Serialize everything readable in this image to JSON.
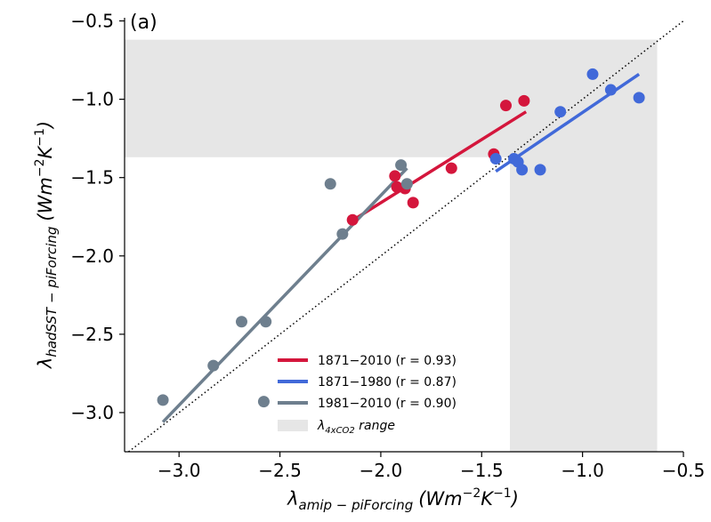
{
  "chart_data": {
    "type": "scatter",
    "panel_label": "(a)",
    "xlabel_parts": {
      "sym": "λ",
      "sub": "amip − piForcing",
      "unit": "(Wm",
      "exp1": "−2",
      "mid": "K",
      "exp2": "−1",
      "close": ")"
    },
    "ylabel_parts": {
      "sym": "λ",
      "sub": "hadSST − piForcing",
      "unit": "(Wm",
      "exp1": "−2",
      "mid": "K",
      "exp2": "−1",
      "close": ")"
    },
    "xlim": [
      -3.27,
      -0.5
    ],
    "ylim": [
      -3.25,
      -0.48
    ],
    "x_ticks": [
      -3.0,
      -2.5,
      -2.0,
      -1.5,
      -1.0,
      -0.5
    ],
    "x_tick_labels": [
      "−3.0",
      "−2.5",
      "−2.0",
      "−1.5",
      "−1.0",
      "−0.5"
    ],
    "y_ticks": [
      -3.0,
      -2.5,
      -2.0,
      -1.5,
      -1.0,
      -0.5
    ],
    "y_tick_labels": [
      "−3.0",
      "−2.5",
      "−2.0",
      "−1.5",
      "−1.0",
      "−0.5"
    ],
    "range_shading": {
      "x_range": [
        -1.36,
        -0.63
      ],
      "y_range": [
        -1.37,
        -0.62
      ],
      "color": "#e6e6e6"
    },
    "one_to_one_line": {
      "style": "dotted",
      "color": "#000000"
    },
    "series": [
      {
        "name": "1871−2010",
        "r_label": "(r = 0.93)",
        "color": "#d4163c",
        "points": [
          [
            -2.14,
            -1.77
          ],
          [
            -1.93,
            -1.49
          ],
          [
            -1.92,
            -1.56
          ],
          [
            -1.88,
            -1.57
          ],
          [
            -1.84,
            -1.66
          ],
          [
            -1.65,
            -1.44
          ],
          [
            -1.44,
            -1.35
          ],
          [
            -1.38,
            -1.04
          ],
          [
            -1.29,
            -1.01
          ]
        ],
        "fit": [
          [
            -2.16,
            -1.79
          ],
          [
            -1.28,
            -1.08
          ]
        ]
      },
      {
        "name": "1871−1980",
        "r_label": "(r = 0.87)",
        "color": "#4169d9",
        "points": [
          [
            -1.43,
            -1.38
          ],
          [
            -1.34,
            -1.38
          ],
          [
            -1.32,
            -1.4
          ],
          [
            -1.3,
            -1.45
          ],
          [
            -1.21,
            -1.45
          ],
          [
            -1.11,
            -1.08
          ],
          [
            -0.95,
            -0.84
          ],
          [
            -0.86,
            -0.94
          ],
          [
            -0.72,
            -0.99
          ]
        ],
        "fit": [
          [
            -1.43,
            -1.46
          ],
          [
            -0.72,
            -0.84
          ]
        ]
      },
      {
        "name": "1981−2010",
        "r_label": "(r = 0.90)",
        "color": "#6e7f8e",
        "points": [
          [
            -3.08,
            -2.92
          ],
          [
            -2.83,
            -2.7
          ],
          [
            -2.69,
            -2.42
          ],
          [
            -2.57,
            -2.42
          ],
          [
            -2.58,
            -2.93
          ],
          [
            -2.25,
            -1.54
          ],
          [
            -2.19,
            -1.86
          ],
          [
            -1.9,
            -1.42
          ],
          [
            -1.87,
            -1.54
          ]
        ],
        "fit": [
          [
            -3.08,
            -3.06
          ],
          [
            -1.87,
            -1.44
          ]
        ]
      }
    ],
    "legend": {
      "placement": "lower-center",
      "range_label_sym": "λ",
      "range_label_sub": "4xCO2",
      "range_label_text": " range"
    }
  }
}
